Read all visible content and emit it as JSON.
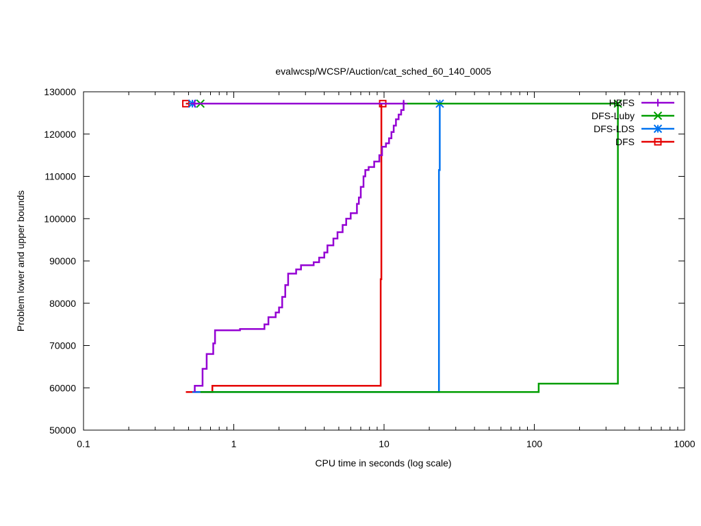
{
  "chart_data": {
    "type": "line",
    "title": "evalwcsp/WCSP/Auction/cat_sched_60_140_0005",
    "xlabel": "CPU time in seconds (log scale)",
    "ylabel": "Problem lower and upper bounds",
    "xscale": "log",
    "xlim": [
      0.1,
      1000
    ],
    "ylim": [
      50000,
      130000
    ],
    "xticks": [
      0.1,
      1,
      10,
      100,
      1000
    ],
    "xtick_labels": [
      "0.1",
      "1",
      "10",
      "100",
      "1000"
    ],
    "yticks": [
      50000,
      60000,
      70000,
      80000,
      90000,
      100000,
      110000,
      120000,
      130000
    ],
    "ytick_labels": [
      "50000",
      "60000",
      "70000",
      "80000",
      "90000",
      "100000",
      "110000",
      "120000",
      "130000"
    ],
    "grid": false,
    "legend_position": "top-right",
    "series": [
      {
        "name": "HBFS",
        "color": "#9400d3",
        "marker": "plus",
        "upper": [
          [
            0.55,
            127200
          ],
          [
            13.5,
            127200
          ]
        ],
        "lower": [
          [
            0.55,
            59000
          ],
          [
            0.55,
            60500
          ],
          [
            0.62,
            60500
          ],
          [
            0.62,
            64500
          ],
          [
            0.66,
            64500
          ],
          [
            0.66,
            68000
          ],
          [
            0.73,
            68000
          ],
          [
            0.73,
            70500
          ],
          [
            0.75,
            70500
          ],
          [
            0.75,
            73600
          ],
          [
            1.1,
            73600
          ],
          [
            1.1,
            73900
          ],
          [
            1.6,
            73900
          ],
          [
            1.6,
            75000
          ],
          [
            1.7,
            75000
          ],
          [
            1.7,
            76700
          ],
          [
            1.9,
            76700
          ],
          [
            1.9,
            77800
          ],
          [
            2.0,
            77800
          ],
          [
            2.0,
            79000
          ],
          [
            2.1,
            79000
          ],
          [
            2.1,
            81500
          ],
          [
            2.2,
            81500
          ],
          [
            2.2,
            84300
          ],
          [
            2.3,
            84300
          ],
          [
            2.3,
            87000
          ],
          [
            2.6,
            87000
          ],
          [
            2.6,
            88000
          ],
          [
            2.8,
            88000
          ],
          [
            2.8,
            89000
          ],
          [
            3.4,
            89000
          ],
          [
            3.4,
            89700
          ],
          [
            3.7,
            89700
          ],
          [
            3.7,
            90800
          ],
          [
            4.0,
            90800
          ],
          [
            4.0,
            92000
          ],
          [
            4.2,
            92000
          ],
          [
            4.2,
            93700
          ],
          [
            4.6,
            93700
          ],
          [
            4.6,
            95300
          ],
          [
            4.9,
            95300
          ],
          [
            4.9,
            96800
          ],
          [
            5.3,
            96800
          ],
          [
            5.3,
            98500
          ],
          [
            5.6,
            98500
          ],
          [
            5.6,
            100000
          ],
          [
            6.0,
            100000
          ],
          [
            6.0,
            101300
          ],
          [
            6.6,
            101300
          ],
          [
            6.6,
            103500
          ],
          [
            6.8,
            103500
          ],
          [
            6.8,
            105000
          ],
          [
            7.0,
            105000
          ],
          [
            7.0,
            107500
          ],
          [
            7.3,
            107500
          ],
          [
            7.3,
            110000
          ],
          [
            7.5,
            110000
          ],
          [
            7.5,
            111500
          ],
          [
            7.9,
            111500
          ],
          [
            7.9,
            112200
          ],
          [
            8.6,
            112200
          ],
          [
            8.6,
            113500
          ],
          [
            9.3,
            113500
          ],
          [
            9.3,
            115000
          ],
          [
            9.7,
            115000
          ],
          [
            9.7,
            117000
          ],
          [
            10.3,
            117000
          ],
          [
            10.3,
            117800
          ],
          [
            10.8,
            117800
          ],
          [
            10.8,
            119000
          ],
          [
            11.2,
            119000
          ],
          [
            11.2,
            120500
          ],
          [
            11.6,
            120500
          ],
          [
            11.6,
            122000
          ],
          [
            12.0,
            122000
          ],
          [
            12.0,
            123500
          ],
          [
            12.5,
            123500
          ],
          [
            12.5,
            124600
          ],
          [
            13.0,
            124600
          ],
          [
            13.0,
            125700
          ],
          [
            13.5,
            125700
          ],
          [
            13.5,
            127800
          ]
        ]
      },
      {
        "name": "DFS-Luby",
        "color": "#009e00",
        "marker": "x",
        "upper": [
          [
            0.6,
            127200
          ],
          [
            360,
            127200
          ]
        ],
        "lower": [
          [
            0.6,
            59000
          ],
          [
            107,
            59000
          ],
          [
            107,
            61000
          ],
          [
            360,
            61000
          ],
          [
            360,
            127200
          ]
        ]
      },
      {
        "name": "DFS-LDS",
        "color": "#0072f0",
        "marker": "star",
        "upper": [
          [
            0.53,
            127200
          ],
          [
            23.5,
            127200
          ]
        ],
        "lower": [
          [
            0.53,
            59000
          ],
          [
            23.2,
            59000
          ],
          [
            23.2,
            111500
          ],
          [
            23.5,
            111500
          ],
          [
            23.5,
            127200
          ]
        ]
      },
      {
        "name": "DFS",
        "color": "#e50000",
        "marker": "square",
        "upper": [
          [
            0.48,
            127200
          ],
          [
            9.8,
            127200
          ]
        ],
        "lower": [
          [
            0.48,
            59000
          ],
          [
            0.72,
            59000
          ],
          [
            0.72,
            60500
          ],
          [
            9.5,
            60500
          ],
          [
            9.5,
            85700
          ],
          [
            9.6,
            85700
          ],
          [
            9.6,
            127200
          ]
        ]
      }
    ]
  }
}
